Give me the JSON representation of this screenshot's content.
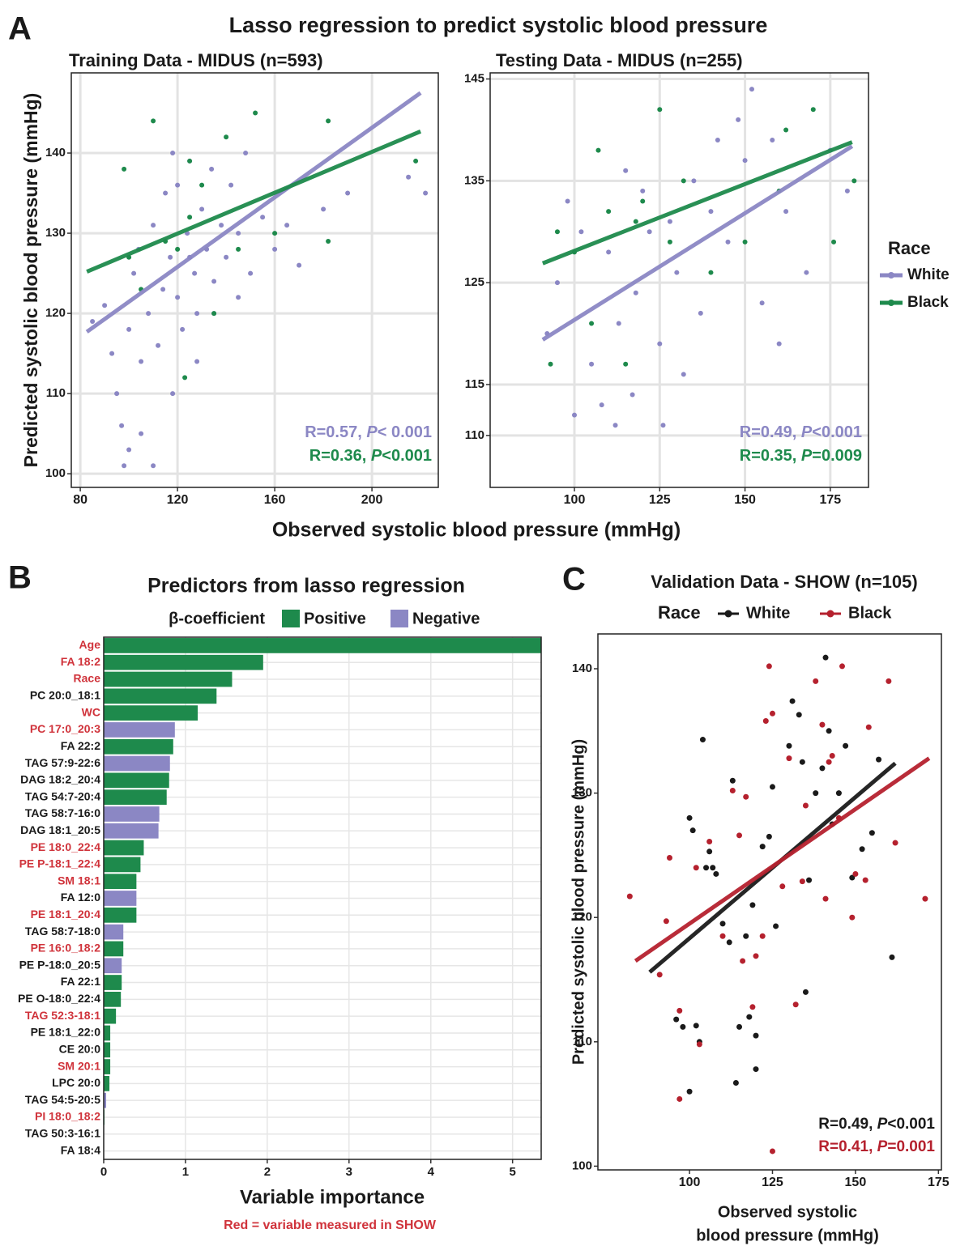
{
  "panel_labels": [
    "A",
    "B",
    "C"
  ],
  "figure_title": "Lasso regression to predict systolic blood pressure",
  "shared_xlabel": "Observed systolic blood pressure (mmHg)",
  "chart_data": [
    {
      "type": "scatter",
      "title": "Training Data - MIDUS (n=593)",
      "ylabel": "Predicted systolic blood pressure (mmHg)",
      "xlim": [
        76.3,
        227.3
      ],
      "ylim": [
        98.3,
        150
      ],
      "xticks": [
        80,
        120,
        160,
        200
      ],
      "yticks": [
        100,
        110,
        120,
        130,
        140
      ],
      "grid": true,
      "series": [
        {
          "color": "#8b87c4",
          "x": [
            85,
            90,
            93,
            95,
            97,
            98,
            100,
            102,
            104,
            105,
            108,
            110,
            110,
            112,
            114,
            115,
            117,
            118,
            120,
            120,
            122,
            124,
            125,
            127,
            128,
            130,
            132,
            134,
            135,
            138,
            140,
            142,
            145,
            148,
            150,
            155,
            160,
            165,
            170,
            180,
            190,
            222,
            215,
            105,
            100,
            128,
            118,
            135,
            145,
            125
          ],
          "values": [
            119,
            121,
            115,
            110,
            106,
            101,
            118,
            125,
            128,
            114,
            120,
            101,
            131,
            116,
            123,
            135,
            127,
            110,
            122,
            136,
            118,
            130,
            139,
            125,
            120,
            133,
            128,
            138,
            124,
            131,
            127,
            136,
            130,
            140,
            125,
            132,
            128,
            131,
            126,
            133,
            135,
            135,
            137,
            105,
            103,
            114,
            140,
            120,
            122,
            127
          ],
          "fit": {
            "x": [
              82.7,
              220
            ],
            "values": [
              117.7,
              147.5
            ]
          }
        },
        {
          "color": "#1e8a4c",
          "x": [
            98,
            100,
            105,
            110,
            115,
            120,
            123,
            125,
            130,
            135,
            140,
            145,
            152,
            160,
            182,
            182,
            218,
            125
          ],
          "values": [
            138,
            127,
            123,
            144,
            129,
            128,
            112,
            132,
            136,
            120,
            142,
            128,
            145,
            130,
            129,
            144,
            139,
            139
          ],
          "fit": {
            "x": [
              82.7,
              220
            ],
            "values": [
              125.2,
              142.7
            ]
          }
        }
      ],
      "annotations": [
        {
          "text": "R=0.57, P< 0.001",
          "color": "#8b87c4"
        },
        {
          "text": "R=0.36, P<0.001",
          "color": "#1e8a4c"
        }
      ]
    },
    {
      "type": "scatter",
      "title": "Testing Data - MIDUS (n=255)",
      "xlim": [
        75.3,
        186.2
      ],
      "ylim": [
        104.9,
        145.6
      ],
      "xticks": [
        100,
        125,
        150,
        175
      ],
      "yticks": [
        110,
        115,
        125,
        135,
        145
      ],
      "grid": true,
      "legend": "right",
      "legend_title": "Race",
      "series": [
        {
          "name": "White",
          "color": "#8b87c4",
          "x": [
            92,
            95,
            98,
            100,
            102,
            105,
            108,
            110,
            112,
            113,
            115,
            117,
            118,
            120,
            122,
            125,
            126,
            128,
            130,
            132,
            135,
            137,
            140,
            142,
            145,
            148,
            150,
            152,
            155,
            158,
            160,
            162,
            168,
            175,
            180
          ],
          "values": [
            120,
            125,
            133,
            112,
            130,
            117,
            113,
            128,
            111,
            121,
            136,
            114,
            124,
            134,
            130,
            119,
            111,
            131,
            126,
            116,
            135,
            122,
            132,
            139,
            129,
            141,
            137,
            144,
            123,
            139,
            119,
            132,
            126,
            138,
            134
          ],
          "fit": {
            "x": [
              90.7,
              181.4
            ],
            "values": [
              119.4,
              138.4
            ]
          }
        },
        {
          "name": "Black",
          "color": "#1e8a4c",
          "x": [
            93,
            95,
            100,
            105,
            107,
            110,
            115,
            118,
            120,
            125,
            128,
            132,
            140,
            150,
            160,
            162,
            170,
            176,
            182
          ],
          "values": [
            117,
            130,
            128,
            121,
            138,
            132,
            117,
            131,
            133,
            142,
            129,
            135,
            126,
            129,
            134,
            140,
            142,
            129,
            135
          ],
          "fit": {
            "x": [
              90.7,
              181.4
            ],
            "values": [
              126.9,
              138.8
            ]
          }
        }
      ],
      "annotations": [
        {
          "text": "R=0.49, P<0.001",
          "color": "#8b87c4"
        },
        {
          "text": "R=0.35, P=0.009",
          "color": "#1e8a4c"
        }
      ]
    },
    {
      "type": "hbar",
      "title": "Predictors from lasso regression",
      "xlabel": "Variable importance",
      "note": "Red = variable measured in SHOW",
      "xlim": [
        0,
        5.35
      ],
      "xticks": [
        0,
        1,
        2,
        3,
        4,
        5
      ],
      "grid": true,
      "legend": {
        "title": "β-coefficient",
        "entries": [
          {
            "name": "Positive",
            "color": "#1e8a4c"
          },
          {
            "name": "Negative",
            "color": "#8b87c4"
          }
        ]
      },
      "categories": [
        "Age",
        "FA 18:2",
        "Race",
        "PC 20:0_18:1",
        "WC",
        "PC 17:0_20:3",
        "FA 22:2",
        "TAG 57:9-22:6",
        "DAG 18:2_20:4",
        "TAG 54:7-20:4",
        "TAG 58:7-16:0",
        "DAG 18:1_20:5",
        "PE 18:0_22:4",
        "PE P-18:1_22:4",
        "SM 18:1",
        "FA 12:0",
        "PE 18:1_20:4",
        "TAG 58:7-18:0",
        "PE 16:0_18:2",
        "PE P-18:0_20:5",
        "FA 22:1",
        "PE O-18:0_22:4",
        "TAG 52:3-18:1",
        "PE 18:1_22:0",
        "CE 20:0",
        "SM 20:1",
        "LPC 20:0",
        "TAG 54:5-20:5",
        "PI 18:0_18:2",
        "TAG 50:3-16:1",
        "FA 18:4"
      ],
      "values": [
        5.35,
        1.95,
        1.57,
        1.38,
        1.15,
        0.87,
        0.85,
        0.81,
        0.8,
        0.77,
        0.68,
        0.67,
        0.49,
        0.45,
        0.4,
        0.4,
        0.4,
        0.24,
        0.24,
        0.22,
        0.22,
        0.21,
        0.15,
        0.08,
        0.08,
        0.08,
        0.07,
        0.03,
        0.01,
        0.005,
        0
      ],
      "bar_colors": [
        "#1e8a4c",
        "#1e8a4c",
        "#1e8a4c",
        "#1e8a4c",
        "#1e8a4c",
        "#8b87c4",
        "#1e8a4c",
        "#8b87c4",
        "#1e8a4c",
        "#1e8a4c",
        "#8b87c4",
        "#8b87c4",
        "#1e8a4c",
        "#1e8a4c",
        "#1e8a4c",
        "#8b87c4",
        "#1e8a4c",
        "#8b87c4",
        "#1e8a4c",
        "#8b87c4",
        "#1e8a4c",
        "#1e8a4c",
        "#1e8a4c",
        "#1e8a4c",
        "#1e8a4c",
        "#1e8a4c",
        "#1e8a4c",
        "#8b87c4",
        "#1e8a4c",
        "#1e8a4c",
        "#1e8a4c"
      ],
      "label_colors": [
        "#d0333b",
        "#d0333b",
        "#d0333b",
        "#1a1a1a",
        "#d0333b",
        "#d0333b",
        "#1a1a1a",
        "#1a1a1a",
        "#1a1a1a",
        "#1a1a1a",
        "#1a1a1a",
        "#1a1a1a",
        "#d0333b",
        "#d0333b",
        "#d0333b",
        "#1a1a1a",
        "#d0333b",
        "#1a1a1a",
        "#d0333b",
        "#1a1a1a",
        "#1a1a1a",
        "#1a1a1a",
        "#d0333b",
        "#1a1a1a",
        "#1a1a1a",
        "#d0333b",
        "#1a1a1a",
        "#1a1a1a",
        "#d0333b",
        "#1a1a1a",
        "#1a1a1a"
      ]
    },
    {
      "type": "scatter",
      "title": "Validation Data - SHOW (n=105)",
      "ylabel": "Predicted systolic blood pressure (mmHg)",
      "xlabel": [
        "Observed systolic",
        "blood pressure (mmHg)"
      ],
      "xlim": [
        72.4,
        175.9
      ],
      "ylim": [
        99.7,
        142.8
      ],
      "xticks": [
        100,
        125,
        150,
        175
      ],
      "yticks": [
        100,
        110,
        120,
        130,
        140
      ],
      "grid": false,
      "legend": "top",
      "legend_title": "Race",
      "series": [
        {
          "name": "White",
          "color": "#1a1a1a",
          "x": [
            96,
            98,
            100,
            100,
            101,
            102,
            103,
            104,
            105,
            106,
            107,
            108,
            110,
            112,
            113,
            114,
            115,
            117,
            118,
            119,
            120,
            120,
            122,
            124,
            125,
            126,
            130,
            131,
            133,
            134,
            135,
            136,
            138,
            140,
            141,
            142,
            143,
            145,
            147,
            149,
            152,
            155,
            157,
            161
          ],
          "values": [
            111.8,
            111.2,
            106,
            128,
            127,
            111.3,
            110,
            134.3,
            124,
            125.3,
            124,
            123.5,
            119.5,
            118,
            131,
            106.7,
            111.2,
            118.5,
            112,
            121,
            110.5,
            107.8,
            125.7,
            126.5,
            130.5,
            119.3,
            133.8,
            137.4,
            136.3,
            132.5,
            114,
            123,
            130,
            132,
            140.9,
            135,
            127.5,
            130,
            133.8,
            123.2,
            125.5,
            126.8,
            132.7,
            116.8
          ],
          "fit": {
            "x": [
              88,
              162
            ],
            "values": [
              115.6,
              132.4
            ]
          }
        },
        {
          "name": "Black",
          "color": "#b5212e",
          "x": [
            82,
            91,
            93,
            94,
            97,
            97,
            102,
            103,
            106,
            110,
            113,
            115,
            116,
            117,
            119,
            120,
            122,
            123,
            124,
            125,
            125,
            128,
            130,
            132,
            134,
            135,
            138,
            140,
            141,
            142,
            143,
            145,
            146,
            149,
            150,
            153,
            154,
            160,
            162,
            171
          ],
          "values": [
            121.7,
            115.4,
            119.7,
            124.8,
            105.4,
            112.5,
            124,
            109.8,
            126.1,
            118.5,
            130.2,
            126.6,
            116.5,
            129.7,
            112.8,
            116.9,
            118.5,
            135.8,
            140.2,
            136.4,
            101.2,
            122.5,
            132.8,
            113,
            122.9,
            129,
            139,
            135.5,
            121.5,
            132.5,
            133,
            128,
            140.2,
            120,
            123.5,
            123,
            135.3,
            139,
            126,
            121.5
          ],
          "fit": {
            "x": [
              83.7,
              172.2
            ],
            "values": [
              116.5,
              132.8
            ]
          }
        }
      ],
      "annotations": [
        {
          "text": "R=0.49, P<0.001",
          "color": "#1a1a1a"
        },
        {
          "text": "R=0.41, P=0.001",
          "color": "#b5212e"
        }
      ]
    }
  ]
}
